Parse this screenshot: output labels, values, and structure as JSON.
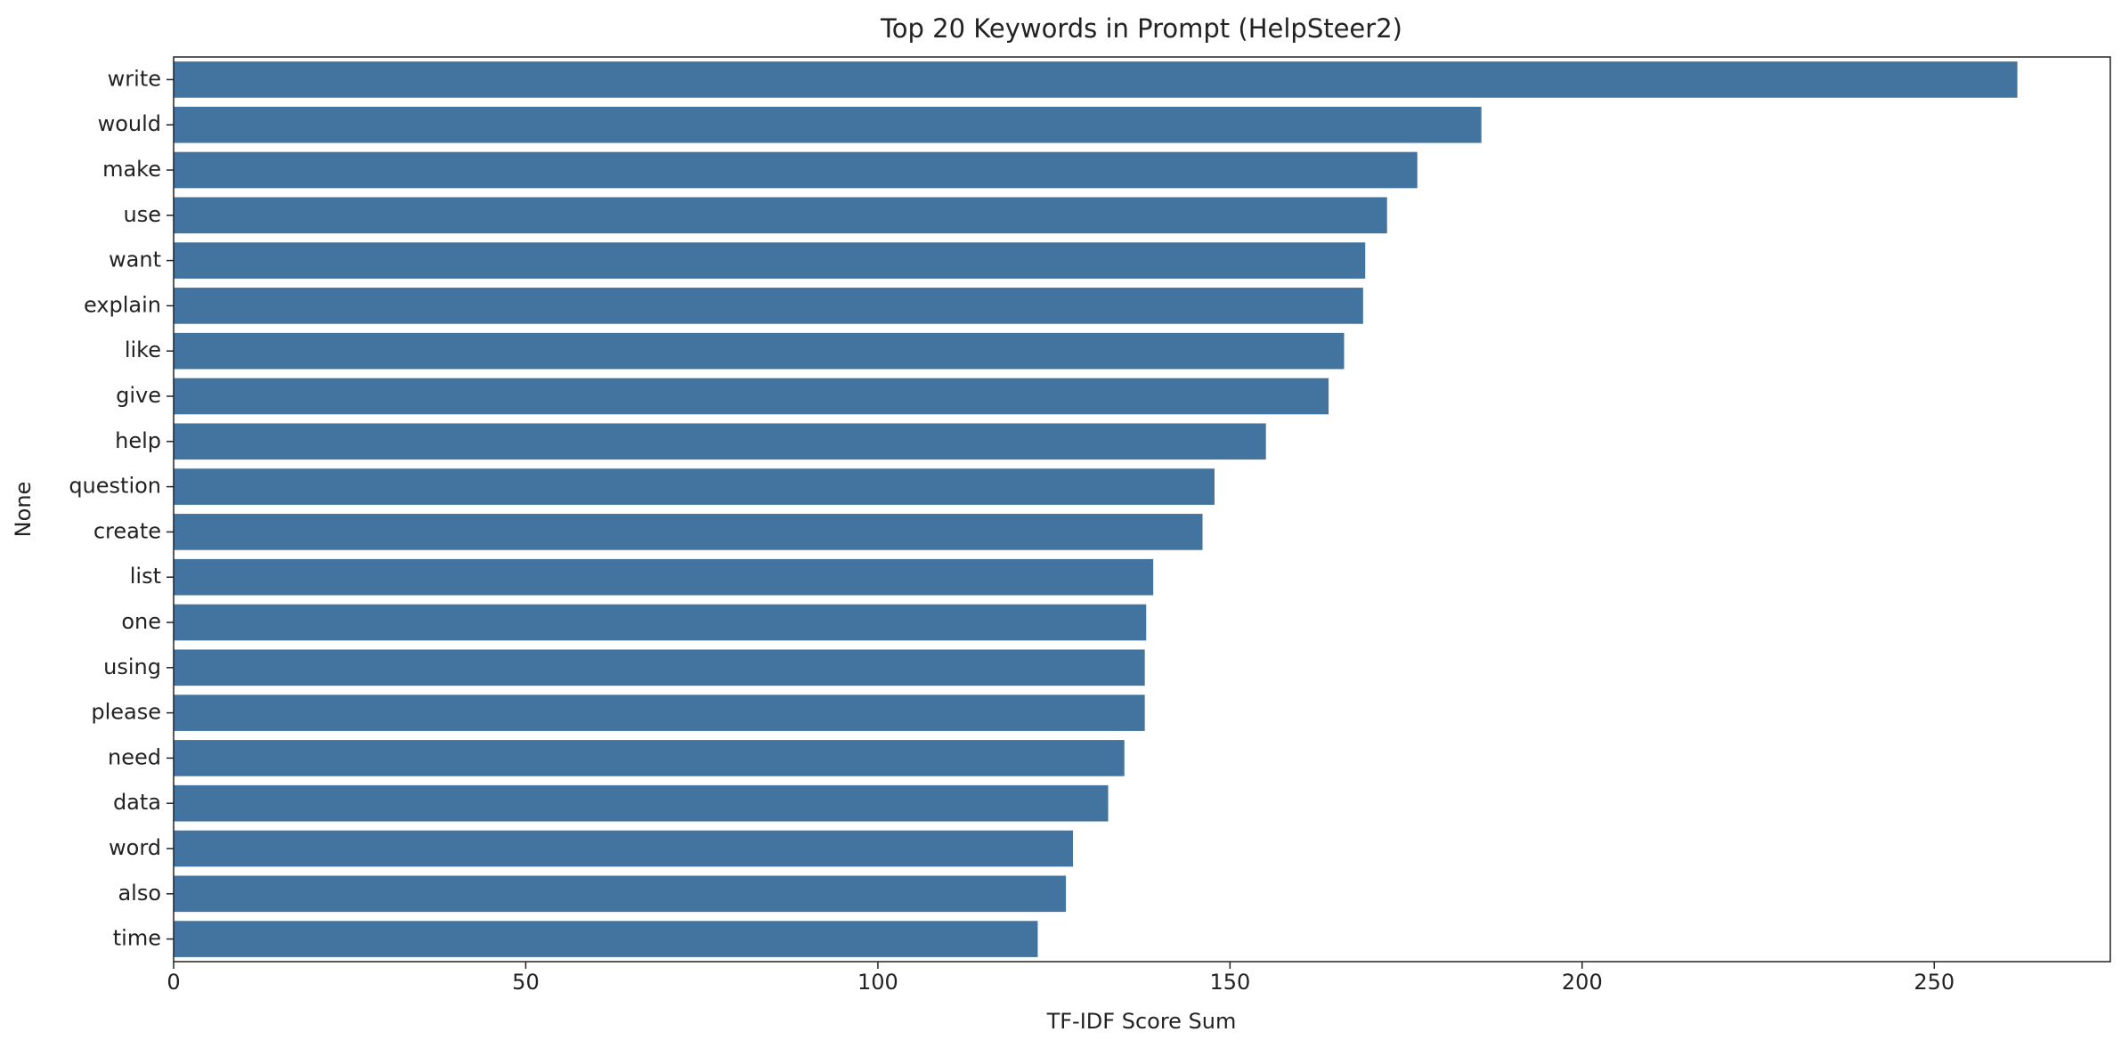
{
  "chart_data": {
    "type": "barh",
    "title": "Top 20 Keywords in Prompt (HelpSteer2)",
    "x_label": "TF-IDF Score Sum",
    "y_label": "None",
    "categories": [
      "write",
      "would",
      "make",
      "use",
      "want",
      "explain",
      "like",
      "give",
      "help",
      "question",
      "create",
      "list",
      "one",
      "using",
      "please",
      "need",
      "data",
      "word",
      "also",
      "time"
    ],
    "values": [
      261.8,
      185.7,
      176.6,
      172.3,
      169.2,
      168.9,
      166.2,
      164.0,
      155.1,
      147.8,
      146.1,
      139.1,
      138.1,
      137.9,
      137.9,
      135.0,
      132.7,
      127.7,
      126.7,
      122.7
    ],
    "color": "#4374a0",
    "xlim": [
      0,
      275
    ],
    "xticks": [
      0,
      50,
      100,
      150,
      200,
      250
    ]
  }
}
